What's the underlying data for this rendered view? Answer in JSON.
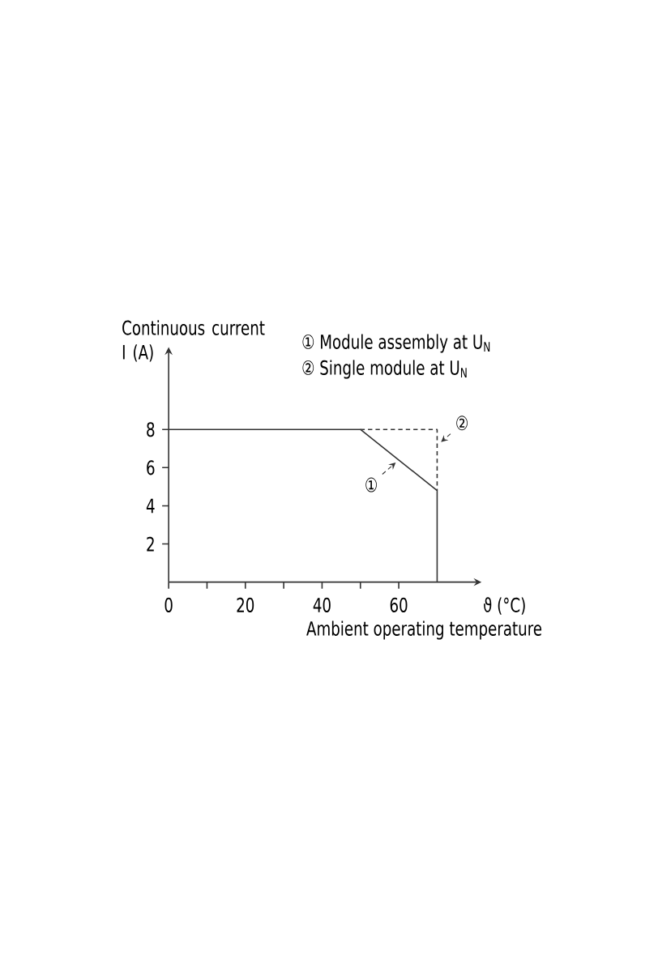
{
  "chart_data": {
    "type": "line",
    "ylabel": "Continuous current I (A)",
    "xlabel": "ϑ (°C)",
    "annotations": [
      "① Module assembly at U$_{N}$",
      "② Single module at U$_{N}$",
      "Ambient operating temperature"
    ],
    "series": [
      {
        "name": "①",
        "color": "#333333",
        "x": [
          0,
          50,
          70,
          70
        ],
        "values": [
          8,
          8,
          4.8,
          0
        ]
      },
      {
        "name": "②",
        "color": "#333333",
        "line_style": "dashed",
        "x": [
          50,
          70,
          70
        ],
        "values": [
          8,
          8,
          4.8
        ]
      }
    ],
    "xlim": [
      0,
      80
    ],
    "ylim": [
      0,
      12
    ],
    "xticks": [
      0,
      {
        "value": 10,
        "label": null
      },
      20,
      {
        "value": 30,
        "label": null
      },
      40,
      {
        "value": 50,
        "label": null
      },
      60
    ],
    "yticks": [
      2,
      4,
      6,
      8
    ]
  }
}
